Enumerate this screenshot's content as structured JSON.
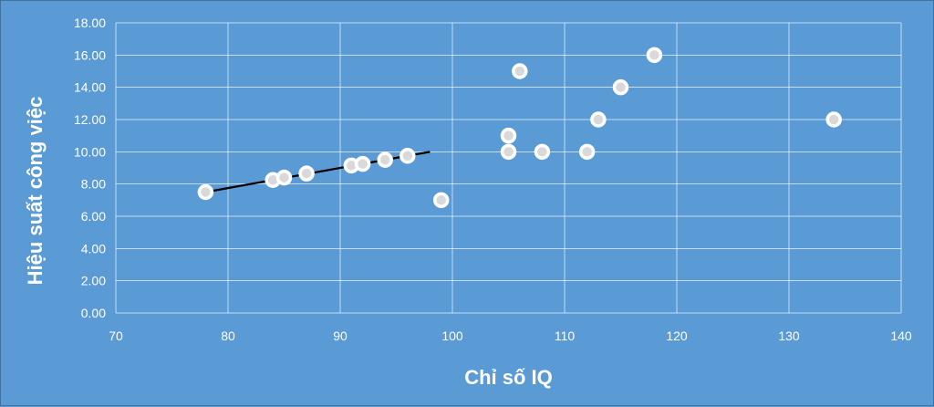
{
  "chart_data": {
    "type": "scatter",
    "xlabel": "Chỉ số IQ",
    "ylabel": "Hiệu suất công việc",
    "xlim": [
      70,
      140
    ],
    "ylim": [
      0,
      18
    ],
    "x_ticks": [
      "70",
      "80",
      "90",
      "100",
      "110",
      "120",
      "130",
      "140"
    ],
    "y_ticks": [
      "0.00",
      "2.00",
      "4.00",
      "6.00",
      "8.00",
      "10.00",
      "12.00",
      "14.00",
      "16.00",
      "18.00"
    ],
    "grid": true,
    "legend": "none",
    "series": [
      {
        "type": "scatter",
        "points": [
          {
            "x": 78,
            "y": 7.5
          },
          {
            "x": 84,
            "y": 8.25
          },
          {
            "x": 85,
            "y": 8.4
          },
          {
            "x": 87,
            "y": 8.65
          },
          {
            "x": 91,
            "y": 9.15
          },
          {
            "x": 92,
            "y": 9.25
          },
          {
            "x": 94,
            "y": 9.5
          },
          {
            "x": 96,
            "y": 9.75
          },
          {
            "x": 99,
            "y": 7.0
          },
          {
            "x": 105,
            "y": 11.0
          },
          {
            "x": 105,
            "y": 10.0
          },
          {
            "x": 106,
            "y": 15.0
          },
          {
            "x": 108,
            "y": 10.0
          },
          {
            "x": 112,
            "y": 10.0
          },
          {
            "x": 113,
            "y": 12.0
          },
          {
            "x": 115,
            "y": 14.0
          },
          {
            "x": 118,
            "y": 16.0
          },
          {
            "x": 134,
            "y": 12.0
          }
        ]
      },
      {
        "type": "line",
        "points": [
          {
            "x": 78,
            "y": 7.5
          },
          {
            "x": 98,
            "y": 10.0
          }
        ]
      }
    ],
    "colors": {
      "background": "#5b9bd5",
      "gridline": "#ffffff",
      "marker_fill": "#ffffff",
      "marker_stroke": "#d9d9d9",
      "trendline": "#000000",
      "text": "#ffffff"
    }
  }
}
